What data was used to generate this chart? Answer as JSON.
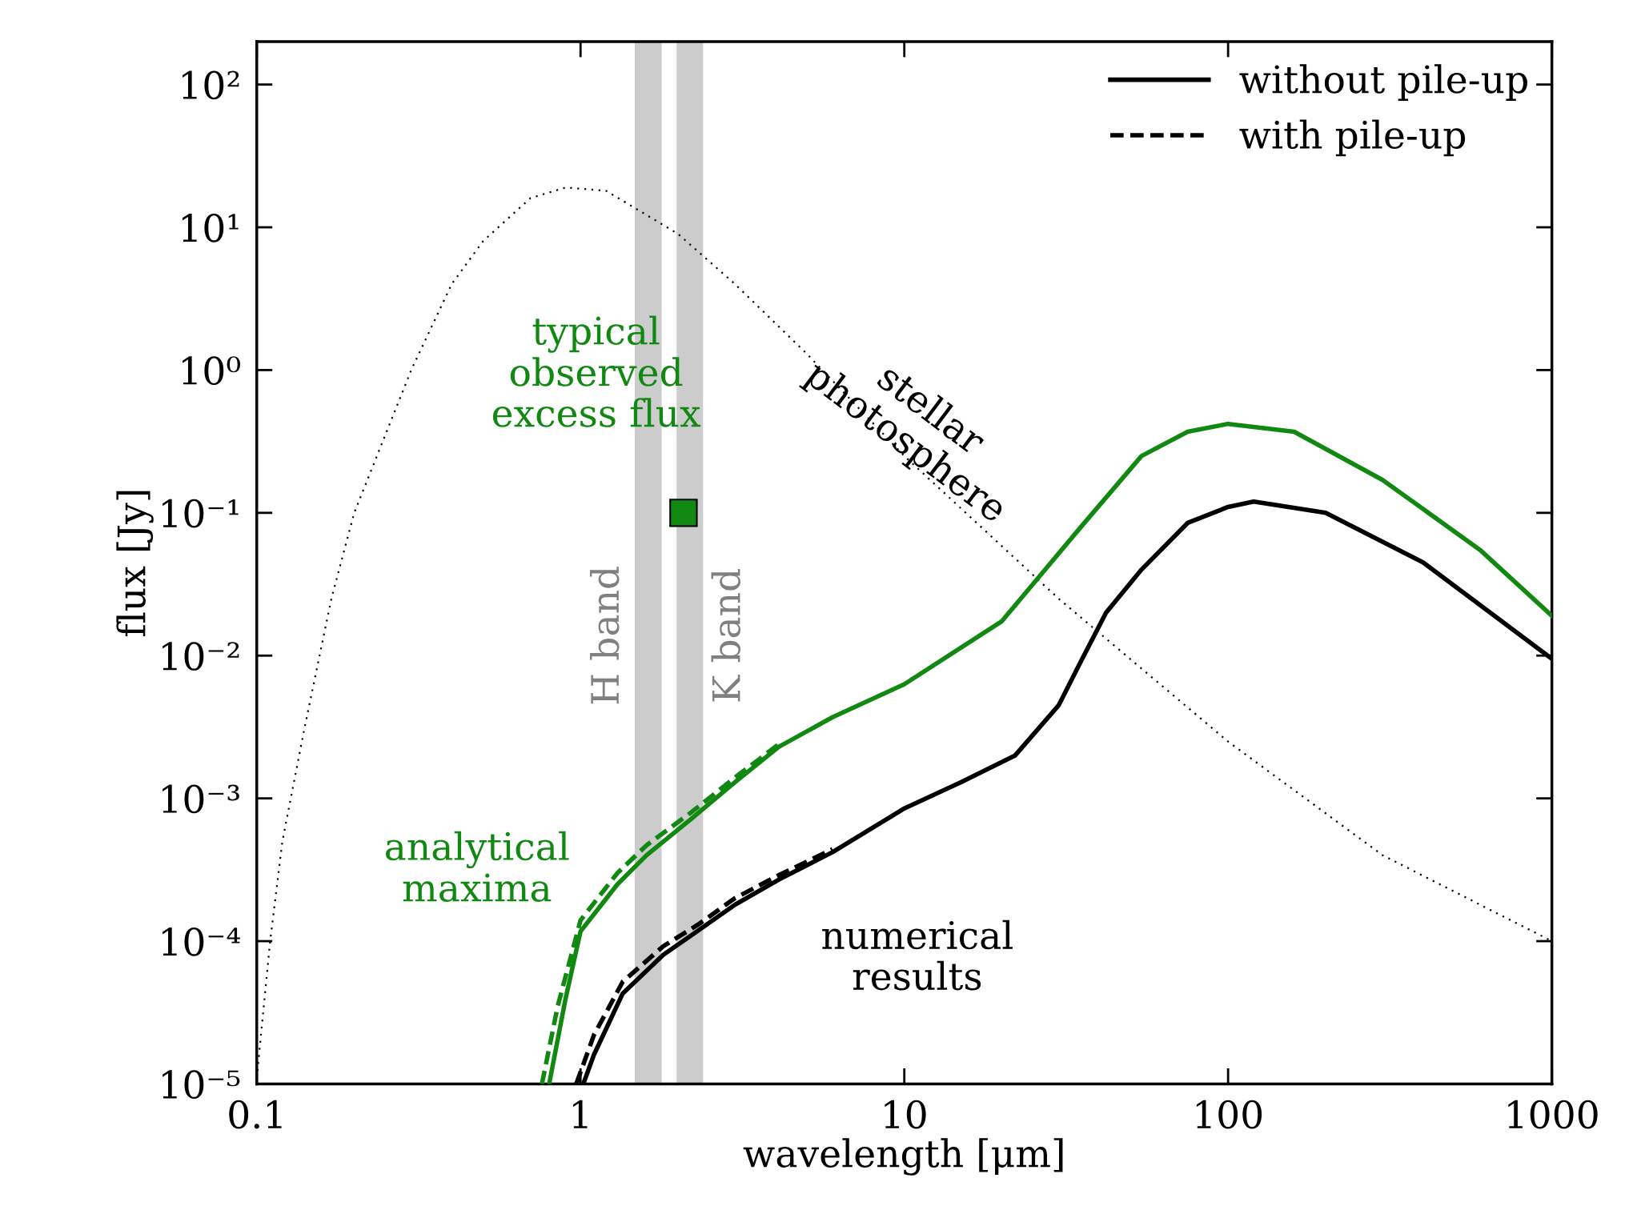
{
  "chart_data": {
    "type": "line",
    "xlabel": "wavelength [μm]",
    "ylabel": "flux [Jy]",
    "log": "xy",
    "xlim": [
      0.1,
      1000
    ],
    "ylim": [
      1e-05,
      200
    ],
    "xticks": [
      0.1,
      1,
      10,
      100,
      1000
    ],
    "yticks": [
      {
        "value": 1e-05,
        "label": "10⁻⁵"
      },
      {
        "value": 0.0001,
        "label": "10⁻⁴"
      },
      {
        "value": 0.001,
        "label": "10⁻³"
      },
      {
        "value": 0.01,
        "label": "10⁻²"
      },
      {
        "value": 0.1,
        "label": "10⁻¹"
      },
      {
        "value": 1,
        "label": "10⁰"
      },
      {
        "value": 10,
        "label": "10¹"
      },
      {
        "value": 100,
        "label": "10²"
      }
    ],
    "legend": "top right",
    "bands": [
      {
        "axis": "x",
        "from": 1.47,
        "to": 1.78,
        "label": "H band",
        "color": "#cccccc"
      },
      {
        "axis": "x",
        "from": 1.98,
        "to": 2.39,
        "label": "K band",
        "color": "#cccccc"
      }
    ],
    "series": [
      {
        "color": "#000000",
        "line_style": "dotted",
        "x": [
          0.1,
          0.11,
          0.12,
          0.14,
          0.17,
          0.2,
          0.3,
          0.4,
          0.5,
          0.7,
          0.9,
          1.2,
          2,
          3,
          5,
          10,
          30,
          100,
          300,
          1000
        ],
        "values": [
          1.1e-05,
          0.0001,
          0.0005,
          0.003,
          0.025,
          0.1,
          1,
          4,
          8,
          16,
          19,
          18,
          9,
          4,
          1.3,
          0.25,
          0.025,
          0.0025,
          0.0004,
          0.0001
        ]
      },
      {
        "color": "#118811",
        "line_style": "solid",
        "x": [
          0.8,
          0.9,
          1,
          1.3,
          1.6,
          2.2,
          3,
          4.1,
          6,
          10,
          20,
          35,
          54,
          75,
          100,
          160,
          300,
          600,
          1000
        ],
        "values": [
          1e-05,
          4e-05,
          0.000117,
          0.00025,
          0.0004,
          0.00072,
          0.0013,
          0.0023,
          0.0037,
          0.0063,
          0.0174,
          0.079,
          0.25,
          0.37,
          0.42,
          0.37,
          0.17,
          0.055,
          0.019
        ]
      },
      {
        "color": "#118811",
        "line_style": "dashed",
        "x": [
          0.76,
          0.85,
          1,
          1.3,
          1.6,
          2.2,
          3,
          4.1
        ],
        "values": [
          1e-05,
          3.5e-05,
          0.00014,
          0.0003,
          0.00047,
          0.0008,
          0.0014,
          0.0024
        ]
      },
      {
        "name": "without pile-up",
        "color": "#000000",
        "line_style": "solid",
        "x": [
          1.02,
          1.1,
          1.35,
          1.8,
          2.3,
          3,
          4.1,
          6,
          10,
          15,
          22,
          30,
          35,
          42,
          54,
          75,
          100,
          120,
          200,
          400,
          1000
        ],
        "values": [
          1e-05,
          1.6e-05,
          4.3e-05,
          8e-05,
          0.000118,
          0.00018,
          0.00027,
          0.00042,
          0.00085,
          0.0013,
          0.002,
          0.0045,
          0.009,
          0.02,
          0.04,
          0.085,
          0.11,
          0.12,
          0.1,
          0.045,
          0.0095
        ]
      },
      {
        "name": "with pile-up",
        "color": "#000000",
        "line_style": "dashed",
        "x": [
          0.97,
          1.1,
          1.35,
          1.8,
          2.3,
          3,
          4.1,
          6
        ],
        "values": [
          1e-05,
          2.2e-05,
          5.2e-05,
          9.2e-05,
          0.00013,
          0.0002,
          0.00029,
          0.00044
        ]
      },
      {
        "type": "scatter",
        "marker": "square",
        "color": "#118811",
        "x": [
          2.08
        ],
        "values": [
          0.1
        ]
      }
    ],
    "annotations": [
      "typical\nobserved\nexcess flux",
      "analytical\nmaxima",
      "numerical\nresults",
      "stellar\nphotosphere"
    ]
  }
}
